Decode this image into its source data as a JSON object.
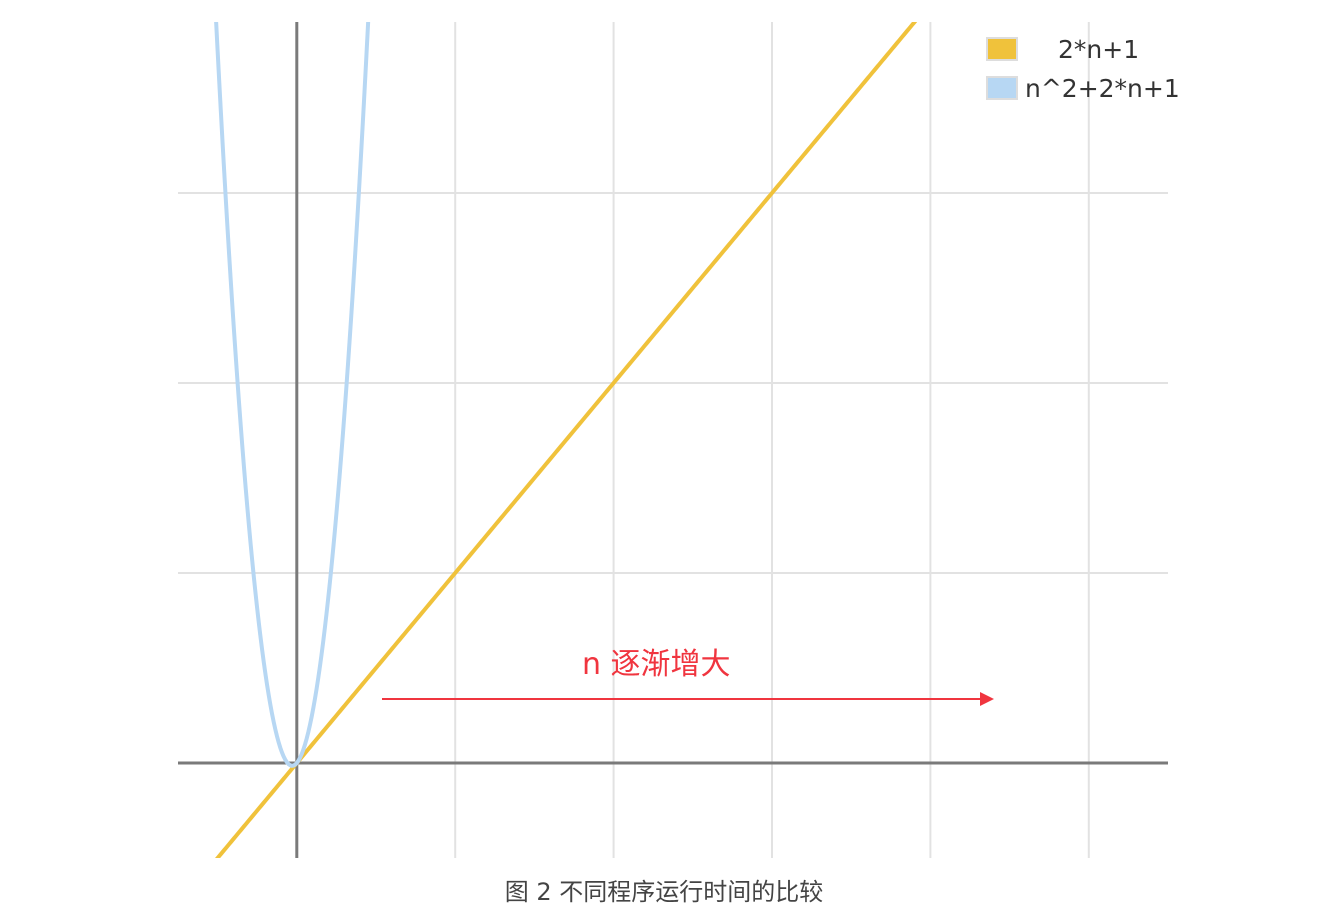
{
  "chart_data": {
    "type": "line",
    "xlim": [
      -0.75,
      5.5
    ],
    "ylim": [
      -0.5,
      3.9
    ],
    "x_gridlines": [
      1,
      2,
      3,
      4,
      5
    ],
    "y_gridlines": [
      1,
      2,
      3
    ],
    "grid": true,
    "legend_placement": "top-right",
    "series": [
      {
        "name": "2*n+1",
        "color": "#f0c23b"
      },
      {
        "name": "n^2+2*n+1",
        "color": "#b7d7f3"
      }
    ],
    "annotation": {
      "text": "n 逐渐增大",
      "color": "#f0353f"
    }
  },
  "caption": "图 2 不同程序运行时间的比较"
}
